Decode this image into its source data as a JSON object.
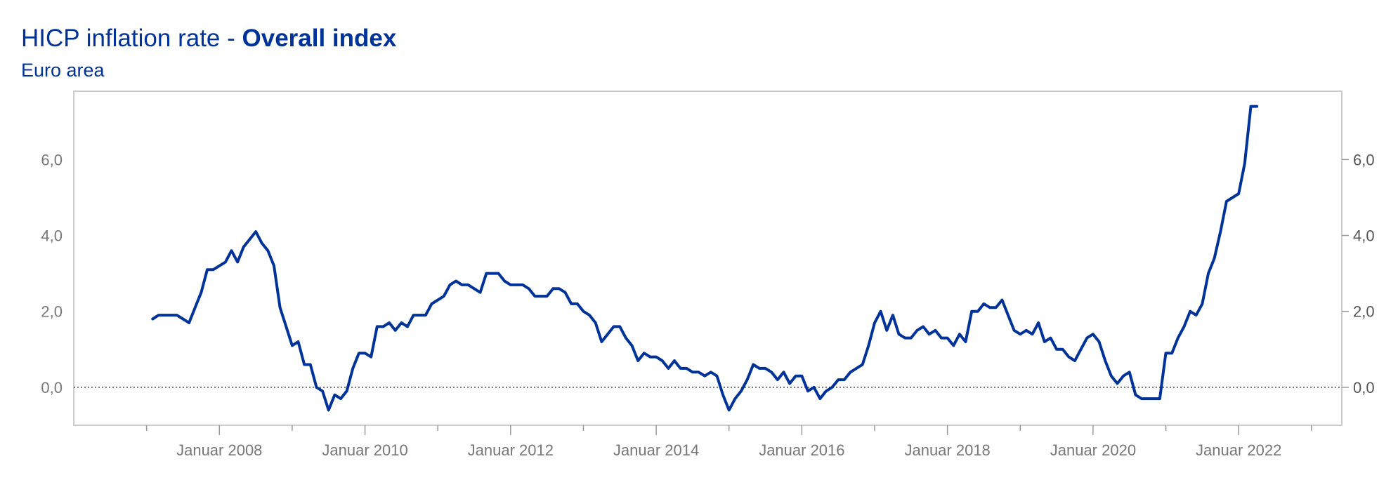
{
  "header": {
    "title_prefix": "HICP inflation rate - ",
    "title_bold": "Overall index",
    "subtitle": "Euro area"
  },
  "chart_data": {
    "type": "line",
    "title": "HICP inflation rate - Overall index",
    "subtitle": "Euro area",
    "xlabel": "",
    "ylabel": "",
    "ylim": [
      -1.0,
      7.8
    ],
    "xlim": [
      "2006-01",
      "2023-06"
    ],
    "y_ticks": [
      0,
      2,
      4,
      6
    ],
    "y_tick_labels": [
      "0,0",
      "2,0",
      "4,0",
      "6,0"
    ],
    "y_axis_both_sides": true,
    "x_tick_labels": [
      "Januar 2008",
      "Januar 2010",
      "Januar 2012",
      "Januar 2014",
      "Januar 2016",
      "Januar 2018",
      "Januar 2020",
      "Januar 2022"
    ],
    "x_tick_dates": [
      "2008-01",
      "2010-01",
      "2012-01",
      "2014-01",
      "2016-01",
      "2018-01",
      "2020-01",
      "2022-01"
    ],
    "x_minor_tick_dates": [
      "2007-01",
      "2009-01",
      "2011-01",
      "2013-01",
      "2015-01",
      "2017-01",
      "2019-01",
      "2021-01",
      "2023-01"
    ],
    "zero_line": "dotted",
    "grid": false,
    "legend": "none",
    "colors": {
      "line": "#003399",
      "frame": "#cccccc",
      "zero_line": "#444444"
    },
    "series": [
      {
        "points": [
          [
            "2007-02",
            1.8
          ],
          [
            "2007-03",
            1.9
          ],
          [
            "2007-04",
            1.9
          ],
          [
            "2007-05",
            1.9
          ],
          [
            "2007-06",
            1.9
          ],
          [
            "2007-07",
            1.8
          ],
          [
            "2007-08",
            1.7
          ],
          [
            "2007-09",
            2.1
          ],
          [
            "2007-10",
            2.5
          ],
          [
            "2007-11",
            3.1
          ],
          [
            "2007-12",
            3.1
          ],
          [
            "2008-01",
            3.2
          ],
          [
            "2008-02",
            3.3
          ],
          [
            "2008-03",
            3.6
          ],
          [
            "2008-04",
            3.3
          ],
          [
            "2008-05",
            3.7
          ],
          [
            "2008-06",
            3.9
          ],
          [
            "2008-07",
            4.1
          ],
          [
            "2008-08",
            3.8
          ],
          [
            "2008-09",
            3.6
          ],
          [
            "2008-10",
            3.2
          ],
          [
            "2008-11",
            2.1
          ],
          [
            "2008-12",
            1.6
          ],
          [
            "2009-01",
            1.1
          ],
          [
            "2009-02",
            1.2
          ],
          [
            "2009-03",
            0.6
          ],
          [
            "2009-04",
            0.6
          ],
          [
            "2009-05",
            0.0
          ],
          [
            "2009-06",
            -0.1
          ],
          [
            "2009-07",
            -0.6
          ],
          [
            "2009-08",
            -0.2
          ],
          [
            "2009-09",
            -0.3
          ],
          [
            "2009-10",
            -0.1
          ],
          [
            "2009-11",
            0.5
          ],
          [
            "2009-12",
            0.9
          ],
          [
            "2010-01",
            0.9
          ],
          [
            "2010-02",
            0.8
          ],
          [
            "2010-03",
            1.6
          ],
          [
            "2010-04",
            1.6
          ],
          [
            "2010-05",
            1.7
          ],
          [
            "2010-06",
            1.5
          ],
          [
            "2010-07",
            1.7
          ],
          [
            "2010-08",
            1.6
          ],
          [
            "2010-09",
            1.9
          ],
          [
            "2010-10",
            1.9
          ],
          [
            "2010-11",
            1.9
          ],
          [
            "2010-12",
            2.2
          ],
          [
            "2011-01",
            2.3
          ],
          [
            "2011-02",
            2.4
          ],
          [
            "2011-03",
            2.7
          ],
          [
            "2011-04",
            2.8
          ],
          [
            "2011-05",
            2.7
          ],
          [
            "2011-06",
            2.7
          ],
          [
            "2011-07",
            2.6
          ],
          [
            "2011-08",
            2.5
          ],
          [
            "2011-09",
            3.0
          ],
          [
            "2011-10",
            3.0
          ],
          [
            "2011-11",
            3.0
          ],
          [
            "2011-12",
            2.8
          ],
          [
            "2012-01",
            2.7
          ],
          [
            "2012-02",
            2.7
          ],
          [
            "2012-03",
            2.7
          ],
          [
            "2012-04",
            2.6
          ],
          [
            "2012-05",
            2.4
          ],
          [
            "2012-06",
            2.4
          ],
          [
            "2012-07",
            2.4
          ],
          [
            "2012-08",
            2.6
          ],
          [
            "2012-09",
            2.6
          ],
          [
            "2012-10",
            2.5
          ],
          [
            "2012-11",
            2.2
          ],
          [
            "2012-12",
            2.2
          ],
          [
            "2013-01",
            2.0
          ],
          [
            "2013-02",
            1.9
          ],
          [
            "2013-03",
            1.7
          ],
          [
            "2013-04",
            1.2
          ],
          [
            "2013-05",
            1.4
          ],
          [
            "2013-06",
            1.6
          ],
          [
            "2013-07",
            1.6
          ],
          [
            "2013-08",
            1.3
          ],
          [
            "2013-09",
            1.1
          ],
          [
            "2013-10",
            0.7
          ],
          [
            "2013-11",
            0.9
          ],
          [
            "2013-12",
            0.8
          ],
          [
            "2014-01",
            0.8
          ],
          [
            "2014-02",
            0.7
          ],
          [
            "2014-03",
            0.5
          ],
          [
            "2014-04",
            0.7
          ],
          [
            "2014-05",
            0.5
          ],
          [
            "2014-06",
            0.5
          ],
          [
            "2014-07",
            0.4
          ],
          [
            "2014-08",
            0.4
          ],
          [
            "2014-09",
            0.3
          ],
          [
            "2014-10",
            0.4
          ],
          [
            "2014-11",
            0.3
          ],
          [
            "2014-12",
            -0.2
          ],
          [
            "2015-01",
            -0.6
          ],
          [
            "2015-02",
            -0.3
          ],
          [
            "2015-03",
            -0.1
          ],
          [
            "2015-04",
            0.2
          ],
          [
            "2015-05",
            0.6
          ],
          [
            "2015-06",
            0.5
          ],
          [
            "2015-07",
            0.5
          ],
          [
            "2015-08",
            0.4
          ],
          [
            "2015-09",
            0.2
          ],
          [
            "2015-10",
            0.4
          ],
          [
            "2015-11",
            0.1
          ],
          [
            "2015-12",
            0.3
          ],
          [
            "2016-01",
            0.3
          ],
          [
            "2016-02",
            -0.1
          ],
          [
            "2016-03",
            0.0
          ],
          [
            "2016-04",
            -0.3
          ],
          [
            "2016-05",
            -0.1
          ],
          [
            "2016-06",
            0.0
          ],
          [
            "2016-07",
            0.2
          ],
          [
            "2016-08",
            0.2
          ],
          [
            "2016-09",
            0.4
          ],
          [
            "2016-10",
            0.5
          ],
          [
            "2016-11",
            0.6
          ],
          [
            "2016-12",
            1.1
          ],
          [
            "2017-01",
            1.7
          ],
          [
            "2017-02",
            2.0
          ],
          [
            "2017-03",
            1.5
          ],
          [
            "2017-04",
            1.9
          ],
          [
            "2017-05",
            1.4
          ],
          [
            "2017-06",
            1.3
          ],
          [
            "2017-07",
            1.3
          ],
          [
            "2017-08",
            1.5
          ],
          [
            "2017-09",
            1.6
          ],
          [
            "2017-10",
            1.4
          ],
          [
            "2017-11",
            1.5
          ],
          [
            "2017-12",
            1.3
          ],
          [
            "2018-01",
            1.3
          ],
          [
            "2018-02",
            1.1
          ],
          [
            "2018-03",
            1.4
          ],
          [
            "2018-04",
            1.2
          ],
          [
            "2018-05",
            2.0
          ],
          [
            "2018-06",
            2.0
          ],
          [
            "2018-07",
            2.2
          ],
          [
            "2018-08",
            2.1
          ],
          [
            "2018-09",
            2.1
          ],
          [
            "2018-10",
            2.3
          ],
          [
            "2018-11",
            1.9
          ],
          [
            "2018-12",
            1.5
          ],
          [
            "2019-01",
            1.4
          ],
          [
            "2019-02",
            1.5
          ],
          [
            "2019-03",
            1.4
          ],
          [
            "2019-04",
            1.7
          ],
          [
            "2019-05",
            1.2
          ],
          [
            "2019-06",
            1.3
          ],
          [
            "2019-07",
            1.0
          ],
          [
            "2019-08",
            1.0
          ],
          [
            "2019-09",
            0.8
          ],
          [
            "2019-10",
            0.7
          ],
          [
            "2019-11",
            1.0
          ],
          [
            "2019-12",
            1.3
          ],
          [
            "2020-01",
            1.4
          ],
          [
            "2020-02",
            1.2
          ],
          [
            "2020-03",
            0.7
          ],
          [
            "2020-04",
            0.3
          ],
          [
            "2020-05",
            0.1
          ],
          [
            "2020-06",
            0.3
          ],
          [
            "2020-07",
            0.4
          ],
          [
            "2020-08",
            -0.2
          ],
          [
            "2020-09",
            -0.3
          ],
          [
            "2020-10",
            -0.3
          ],
          [
            "2020-11",
            -0.3
          ],
          [
            "2020-12",
            -0.3
          ],
          [
            "2021-01",
            0.9
          ],
          [
            "2021-02",
            0.9
          ],
          [
            "2021-03",
            1.3
          ],
          [
            "2021-04",
            1.6
          ],
          [
            "2021-05",
            2.0
          ],
          [
            "2021-06",
            1.9
          ],
          [
            "2021-07",
            2.2
          ],
          [
            "2021-08",
            3.0
          ],
          [
            "2021-09",
            3.4
          ],
          [
            "2021-10",
            4.1
          ],
          [
            "2021-11",
            4.9
          ],
          [
            "2021-12",
            5.0
          ],
          [
            "2022-01",
            5.1
          ],
          [
            "2022-02",
            5.9
          ],
          [
            "2022-03",
            7.4
          ],
          [
            "2022-04",
            7.4
          ]
        ]
      }
    ]
  }
}
